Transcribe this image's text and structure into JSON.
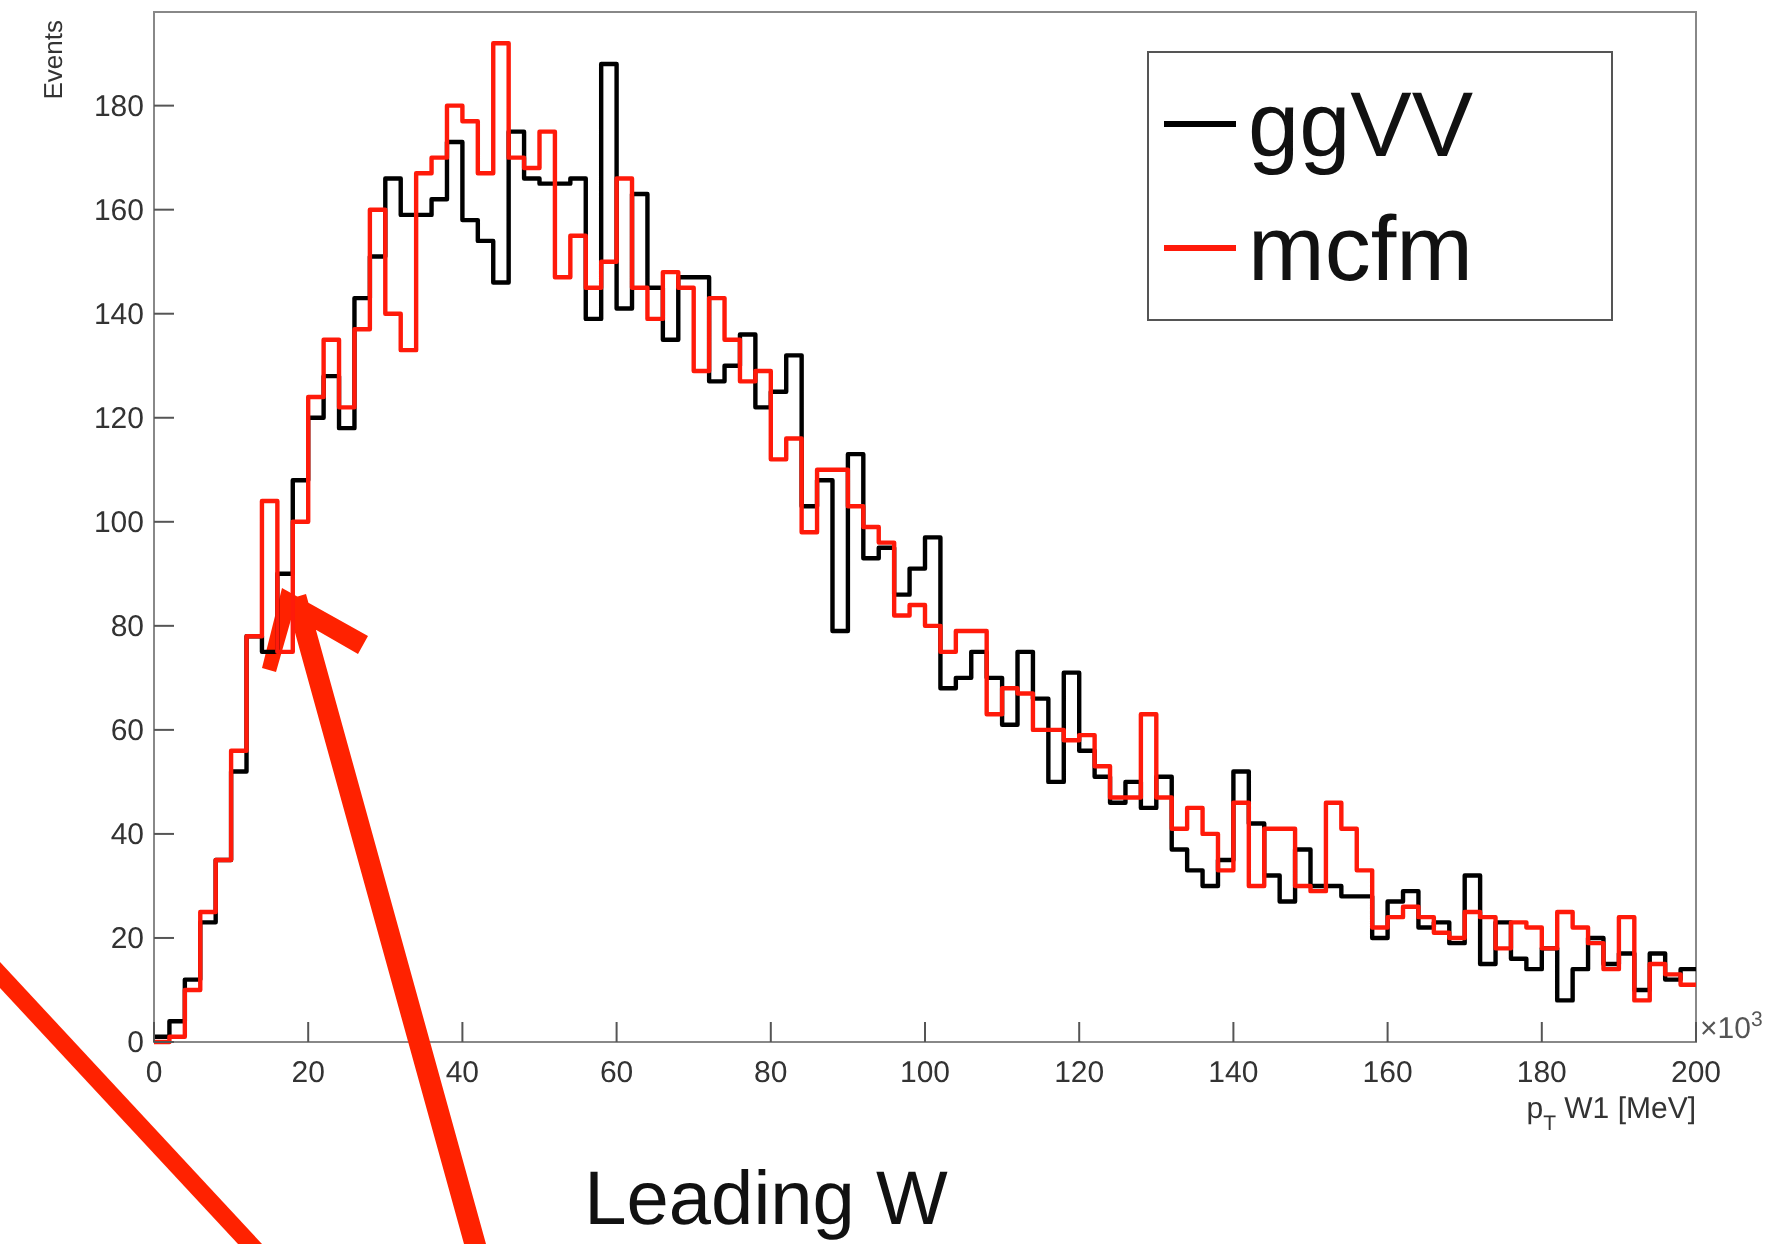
{
  "chart_data": {
    "type": "histogram",
    "ylabel": "Events",
    "xlabel": "p$_{T}$ W1 [MeV]",
    "annotations": [
      "×10$^{3}$",
      "Leading W"
    ],
    "bins": [
      0,
      2,
      4,
      6,
      8,
      10,
      12,
      14,
      16,
      18,
      20,
      22,
      24,
      26,
      28,
      30,
      32,
      34,
      36,
      38,
      40,
      42,
      44,
      46,
      48,
      50,
      52,
      54,
      56,
      58,
      60,
      62,
      64,
      66,
      68,
      70,
      72,
      74,
      76,
      78,
      80,
      82,
      84,
      86,
      88,
      90,
      92,
      94,
      96,
      98,
      100,
      102,
      104,
      106,
      108,
      110,
      112,
      114,
      116,
      118,
      120,
      122,
      124,
      126,
      128,
      130,
      132,
      134,
      136,
      138,
      140,
      142,
      144,
      146,
      148,
      150,
      152,
      154,
      156,
      158,
      160,
      162,
      164,
      166,
      168,
      170,
      172,
      174,
      176,
      178,
      180,
      182,
      184,
      186,
      188,
      190,
      192,
      194,
      196,
      198,
      200
    ],
    "series": [
      {
        "name": "ggVV",
        "color": "#000000",
        "values": [
          1,
          4,
          12,
          23,
          35,
          52,
          78,
          75,
          90,
          108,
          120,
          128,
          118,
          143,
          151,
          166,
          159,
          159,
          162,
          173,
          158,
          154,
          146,
          175,
          166,
          165,
          165,
          166,
          139,
          188,
          141,
          163,
          145,
          135,
          147,
          147,
          127,
          130,
          136,
          122,
          125,
          132,
          103,
          108,
          79,
          113,
          93,
          95,
          86,
          91,
          97,
          68,
          70,
          75,
          70,
          61,
          75,
          66,
          50,
          71,
          56,
          51,
          46,
          50,
          45,
          51,
          37,
          33,
          30,
          35,
          52,
          42,
          32,
          27,
          37,
          30,
          30,
          28,
          28,
          20,
          27,
          29,
          22,
          23,
          19,
          32,
          15,
          23,
          16,
          14,
          18,
          8,
          14,
          20,
          15,
          17,
          10,
          17,
          12,
          14
        ]
      },
      {
        "name": "mcfm",
        "color": "#ff1a0a",
        "values": [
          0,
          1,
          10,
          25,
          35,
          56,
          78,
          104,
          75,
          100,
          124,
          135,
          122,
          137,
          160,
          140,
          133,
          167,
          170,
          180,
          177,
          167,
          192,
          170,
          168,
          175,
          147,
          155,
          145,
          150,
          166,
          145,
          139,
          148,
          145,
          129,
          143,
          135,
          127,
          129,
          112,
          116,
          98,
          110,
          110,
          103,
          99,
          96,
          82,
          84,
          80,
          75,
          79,
          79,
          63,
          68,
          67,
          60,
          60,
          58,
          59,
          53,
          47,
          47,
          63,
          47,
          41,
          45,
          40,
          33,
          46,
          30,
          41,
          41,
          30,
          29,
          46,
          41,
          33,
          22,
          24,
          26,
          24,
          21,
          20,
          25,
          24,
          18,
          23,
          22,
          18,
          25,
          22,
          19,
          14,
          24,
          8,
          15,
          13,
          11
        ]
      }
    ],
    "xlim": [
      0,
      200
    ],
    "xticks": [
      0,
      20,
      40,
      60,
      80,
      100,
      120,
      140,
      160,
      180,
      200
    ],
    "ylim": [
      0,
      198
    ],
    "yticks": [
      0,
      20,
      40,
      60,
      80,
      100,
      120,
      140,
      160,
      180
    ],
    "legend": "top right"
  }
}
